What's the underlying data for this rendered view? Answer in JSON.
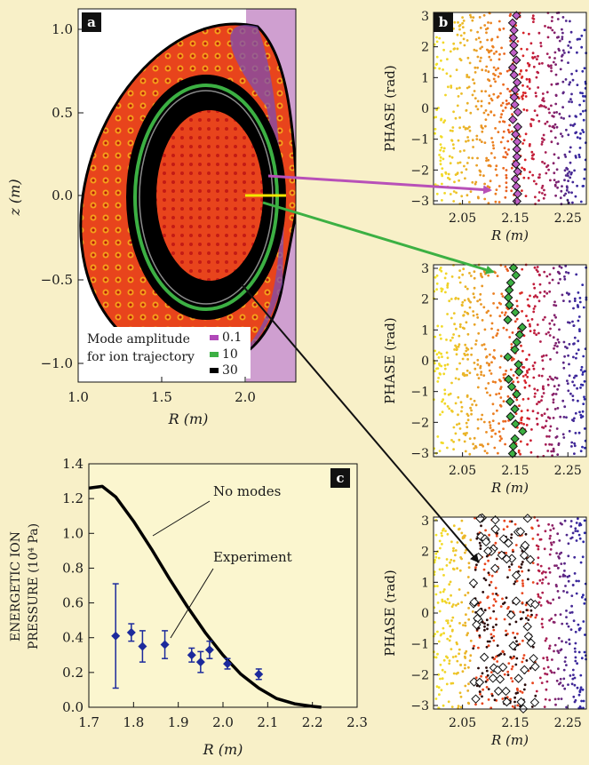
{
  "chart_data": [
    {
      "panel": "a",
      "type": "heatmap",
      "xlabel": "R (m)",
      "ylabel": "z (m)",
      "xlim": [
        1.0,
        2.35
      ],
      "ylim": [
        -1.1,
        1.1
      ],
      "xticks": [
        "1.0",
        "1.5",
        "2.0"
      ],
      "yticks": [
        "1.0",
        "0.5",
        "0.0",
        "−0.5",
        "−1.0"
      ],
      "legend_title": [
        "Mode amplitude",
        "for ion trajectory"
      ],
      "legend_entries": [
        {
          "label": "0.1",
          "color": "#b048b8"
        },
        {
          "label": "10",
          "color": "#3cb043"
        },
        {
          "label": "30",
          "color": "#000000"
        }
      ]
    },
    {
      "panel": "b",
      "type": "scatter",
      "xlabel": "R (m)",
      "ylabel": "PHASE (rad)",
      "xticks": [
        "2.05",
        "2.15",
        "2.25"
      ],
      "yticks": [
        "3",
        "2",
        "1",
        "0",
        "−1",
        "−2",
        "−3"
      ],
      "xlim": [
        1.995,
        2.285
      ],
      "ylim": [
        -3.14,
        3.14
      ],
      "subplots": [
        {
          "mode_amplitude": 0.1,
          "marker_color": "#c060c8",
          "trajectory_R_range": [
            2.145,
            2.155
          ]
        },
        {
          "mode_amplitude": 10,
          "marker_color": "#3cb043",
          "trajectory_R_range": [
            2.135,
            2.165
          ]
        },
        {
          "mode_amplitude": 30,
          "marker_color": "#ffffff",
          "trajectory_R_range": [
            2.07,
            2.19
          ]
        }
      ]
    },
    {
      "panel": "c",
      "type": "line",
      "xlabel": "R (m)",
      "ylabel": [
        "ENERGETIC ION",
        "PRESSURE (10⁴ Pa)"
      ],
      "xlim": [
        1.7,
        2.3
      ],
      "ylim": [
        0.0,
        1.4
      ],
      "xticks": [
        "1.7",
        "1.8",
        "1.9",
        "2.0",
        "2.1",
        "2.2",
        "2.3"
      ],
      "yticks": [
        "0.0",
        "0.2",
        "0.4",
        "0.6",
        "0.8",
        "1.0",
        "1.2",
        "1.4"
      ],
      "annotations": [
        "No modes",
        "Experiment"
      ],
      "series": [
        {
          "name": "No modes",
          "x": [
            1.7,
            1.73,
            1.76,
            1.8,
            1.84,
            1.88,
            1.92,
            1.96,
            2.0,
            2.04,
            2.08,
            2.12,
            2.16,
            2.2,
            2.22
          ],
          "y": [
            1.26,
            1.27,
            1.21,
            1.07,
            0.91,
            0.74,
            0.58,
            0.43,
            0.3,
            0.19,
            0.11,
            0.05,
            0.02,
            0.005,
            0.0
          ]
        },
        {
          "name": "Experiment",
          "x": [
            1.76,
            1.795,
            1.82,
            1.87,
            1.93,
            1.95,
            1.97,
            2.01,
            2.08
          ],
          "y": [
            0.41,
            0.43,
            0.35,
            0.36,
            0.3,
            0.26,
            0.33,
            0.25,
            0.19
          ],
          "err": [
            0.3,
            0.05,
            0.09,
            0.08,
            0.04,
            0.06,
            0.05,
            0.03,
            0.03
          ]
        }
      ]
    }
  ],
  "panel_letters": [
    "a",
    "b",
    "c"
  ]
}
